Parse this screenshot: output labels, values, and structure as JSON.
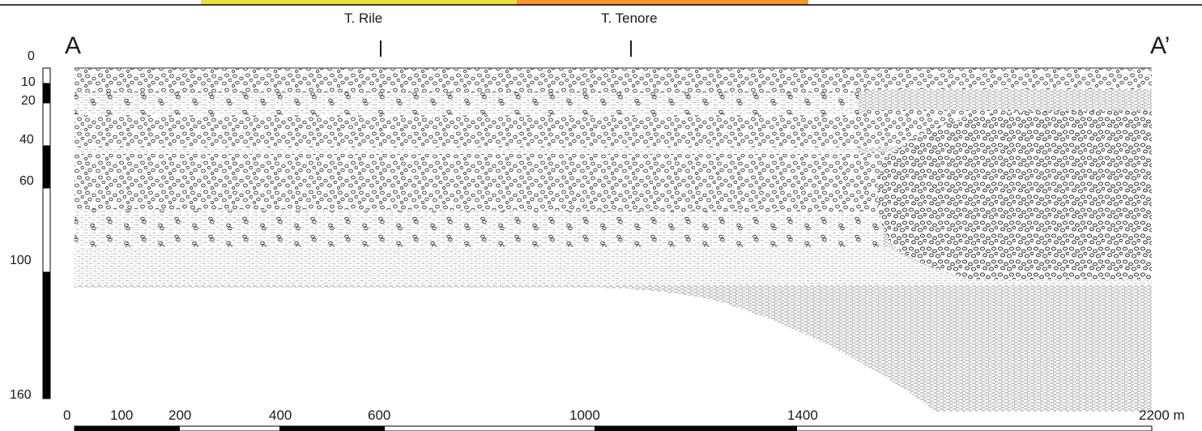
{
  "top_strip": {
    "colors": [
      "#e7e23a",
      "#f29a2e"
    ]
  },
  "section": {
    "start_label": "A",
    "end_label": "A’",
    "streams": [
      {
        "name": "T. Rile",
        "distance": 600
      },
      {
        "name": "T. Tenore",
        "distance": 1080
      }
    ]
  },
  "depth_scale": {
    "unit": "m",
    "ticks": [
      {
        "label": "0",
        "value": 0
      },
      {
        "label": "10",
        "value": 10
      },
      {
        "label": "20",
        "value": 20
      },
      {
        "label": "40",
        "value": 40
      },
      {
        "label": "60",
        "value": 60
      },
      {
        "label": "100",
        "value": 100
      },
      {
        "label": "160",
        "value": 160
      }
    ],
    "bar_segments": [
      {
        "from": 0,
        "to": 10,
        "fill": "white"
      },
      {
        "from": 10,
        "to": 20,
        "fill": "black"
      },
      {
        "from": 20,
        "to": 40,
        "fill": "white"
      },
      {
        "from": 40,
        "to": 60,
        "fill": "black"
      },
      {
        "from": 60,
        "to": 100,
        "fill": "white"
      },
      {
        "from": 100,
        "to": 160,
        "fill": "black"
      }
    ]
  },
  "distance_scale": {
    "ticks": [
      {
        "label": "0",
        "value": 0
      },
      {
        "label": "100",
        "value": 100
      },
      {
        "label": "200",
        "value": 200
      },
      {
        "label": "400",
        "value": 400
      },
      {
        "label": "600",
        "value": 600
      },
      {
        "label": "1000",
        "value": 1000
      },
      {
        "label": "1400",
        "value": 1400
      },
      {
        "label": "2200 m",
        "value": 2200
      }
    ]
  },
  "legend_patterns": {
    "gravel": "circles",
    "sand_silt": "dashed-stipple",
    "clay": "dense-dashes"
  }
}
